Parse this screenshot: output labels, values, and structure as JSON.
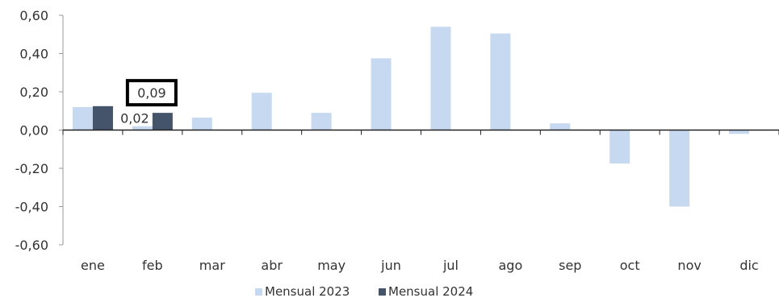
{
  "chart_data": {
    "type": "bar",
    "categories": [
      "ene",
      "feb",
      "mar",
      "abr",
      "may",
      "jun",
      "jul",
      "ago",
      "sep",
      "oct",
      "nov",
      "dic"
    ],
    "series": [
      {
        "name": "Mensual 2023",
        "color": "#c6d9f1",
        "values": [
          0.12,
          0.02,
          0.065,
          0.195,
          0.09,
          0.375,
          0.54,
          0.505,
          0.035,
          -0.175,
          -0.4,
          -0.02
        ]
      },
      {
        "name": "Mensual 2024",
        "color": "#44546a",
        "values": [
          0.125,
          0.09,
          null,
          null,
          null,
          null,
          null,
          null,
          null,
          null,
          null,
          null
        ]
      }
    ],
    "ylim": [
      -0.6,
      0.6
    ],
    "yticks": [
      "-0,60",
      "-0,40",
      "-0,20",
      "0,00",
      "0,20",
      "0,40",
      "0,60"
    ],
    "ytick_values": [
      -0.6,
      -0.4,
      -0.2,
      0.0,
      0.2,
      0.4,
      0.6
    ],
    "data_labels": [
      {
        "series": 0,
        "index": 1,
        "text": "0,02",
        "boxed": false
      },
      {
        "series": 1,
        "index": 1,
        "text": "0,09",
        "boxed": true
      }
    ],
    "legend_position": "bottom",
    "grid": false,
    "title": "",
    "xlabel": "",
    "ylabel": ""
  }
}
